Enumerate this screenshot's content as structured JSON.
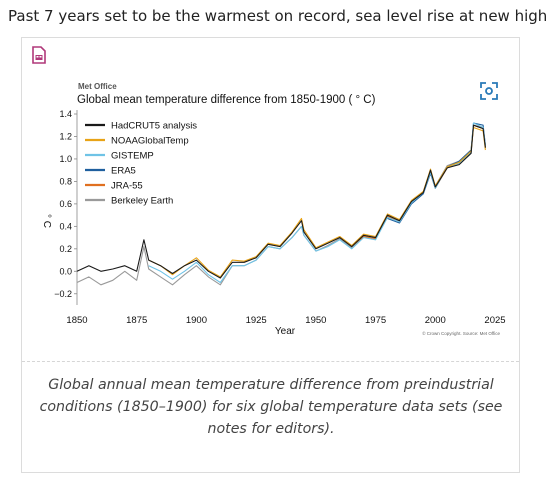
{
  "headline": "Past 7 years set to be the warmest on record, sea level rise at new high",
  "icons": {
    "document": "document-icon",
    "expand": "expand-icon"
  },
  "caption": "Global annual mean temperature difference from preindustrial conditions (1850–1900) for six global temperature data sets (see notes for editors).",
  "chart_data": {
    "type": "line",
    "brand": "Met Office",
    "title": "Global mean temperature difference from 1850-1900 ( ° C)",
    "xlabel": "Year",
    "ylabel": "° C",
    "copyright": "© Crown Copyright. Source: Met Office",
    "xlim": [
      1850,
      2025
    ],
    "ylim": [
      -0.3,
      1.4
    ],
    "x_ticks": [
      "1850",
      "1875",
      "1900",
      "1925",
      "1950",
      "1975",
      "2000",
      "2025"
    ],
    "y_ticks": [
      "1.4",
      "1.2",
      "1.0",
      "0.8",
      "0.6",
      "0.4",
      "0.2",
      "0.0",
      "−0.2"
    ],
    "grid": false,
    "legend_position": "top-left",
    "x": [
      1850,
      1855,
      1860,
      1865,
      1870,
      1875,
      1878,
      1880,
      1885,
      1890,
      1895,
      1900,
      1905,
      1910,
      1915,
      1920,
      1925,
      1930,
      1935,
      1940,
      1944,
      1945,
      1950,
      1955,
      1960,
      1965,
      1970,
      1975,
      1980,
      1985,
      1990,
      1995,
      1998,
      2000,
      2005,
      2010,
      2015,
      2016,
      2020,
      2021
    ],
    "series": [
      {
        "name": "HadCRUT5 analysis",
        "color": "#1a1a1a",
        "values": [
          0.0,
          0.05,
          0.0,
          0.02,
          0.05,
          0.0,
          0.28,
          0.1,
          0.05,
          -0.02,
          0.05,
          0.1,
          0.0,
          -0.06,
          0.08,
          0.08,
          0.12,
          0.24,
          0.22,
          0.34,
          0.45,
          0.35,
          0.2,
          0.25,
          0.3,
          0.22,
          0.32,
          0.3,
          0.5,
          0.45,
          0.62,
          0.7,
          0.9,
          0.75,
          0.92,
          0.95,
          1.05,
          1.3,
          1.27,
          1.1
        ]
      },
      {
        "name": "NOAAGlobalTemp",
        "color": "#e8a317",
        "values": [
          null,
          null,
          null,
          null,
          null,
          null,
          null,
          0.1,
          0.05,
          -0.03,
          0.05,
          0.12,
          0.01,
          -0.05,
          0.1,
          0.09,
          0.13,
          0.25,
          0.23,
          0.35,
          0.47,
          0.37,
          0.21,
          0.26,
          0.31,
          0.23,
          0.33,
          0.31,
          0.51,
          0.46,
          0.63,
          0.71,
          0.91,
          0.76,
          0.93,
          0.97,
          1.07,
          1.28,
          1.25,
          1.08
        ]
      },
      {
        "name": "GISTEMP",
        "color": "#6fc3e6",
        "values": [
          null,
          null,
          null,
          null,
          null,
          null,
          null,
          0.05,
          0.0,
          -0.07,
          0.0,
          0.08,
          -0.03,
          -0.1,
          0.05,
          0.05,
          0.1,
          0.22,
          0.2,
          0.3,
          0.4,
          0.32,
          0.18,
          0.22,
          0.28,
          0.2,
          0.3,
          0.28,
          0.48,
          0.44,
          0.61,
          0.7,
          0.88,
          0.74,
          0.93,
          0.96,
          1.06,
          1.32,
          1.28,
          1.12
        ]
      },
      {
        "name": "ERA5",
        "color": "#1f5f9e",
        "values": [
          null,
          null,
          null,
          null,
          null,
          null,
          null,
          null,
          null,
          null,
          null,
          null,
          null,
          null,
          null,
          null,
          null,
          null,
          null,
          null,
          null,
          null,
          null,
          null,
          null,
          null,
          null,
          null,
          0.47,
          0.43,
          0.6,
          0.69,
          0.87,
          0.74,
          0.93,
          0.98,
          1.08,
          1.32,
          1.3,
          1.12
        ]
      },
      {
        "name": "JRA-55",
        "color": "#e07020",
        "values": [
          null,
          null,
          null,
          null,
          null,
          null,
          null,
          null,
          null,
          null,
          null,
          null,
          null,
          null,
          null,
          null,
          null,
          null,
          null,
          null,
          null,
          null,
          null,
          null,
          0.31,
          0.22,
          0.31,
          0.29,
          0.49,
          0.44,
          0.61,
          0.7,
          0.88,
          0.74,
          0.92,
          0.96,
          1.06,
          1.3,
          1.27,
          1.1
        ]
      },
      {
        "name": "Berkeley Earth",
        "color": "#9a9a9a",
        "values": [
          -0.1,
          -0.05,
          -0.12,
          -0.08,
          0.0,
          -0.08,
          0.22,
          0.02,
          -0.05,
          -0.12,
          -0.03,
          0.05,
          -0.05,
          -0.12,
          0.05,
          0.05,
          0.1,
          0.22,
          0.2,
          0.3,
          0.4,
          0.32,
          0.18,
          0.23,
          0.29,
          0.21,
          0.31,
          0.29,
          0.49,
          0.45,
          0.62,
          0.71,
          0.9,
          0.76,
          0.94,
          0.98,
          1.08,
          1.3,
          1.28,
          1.12
        ]
      }
    ]
  }
}
